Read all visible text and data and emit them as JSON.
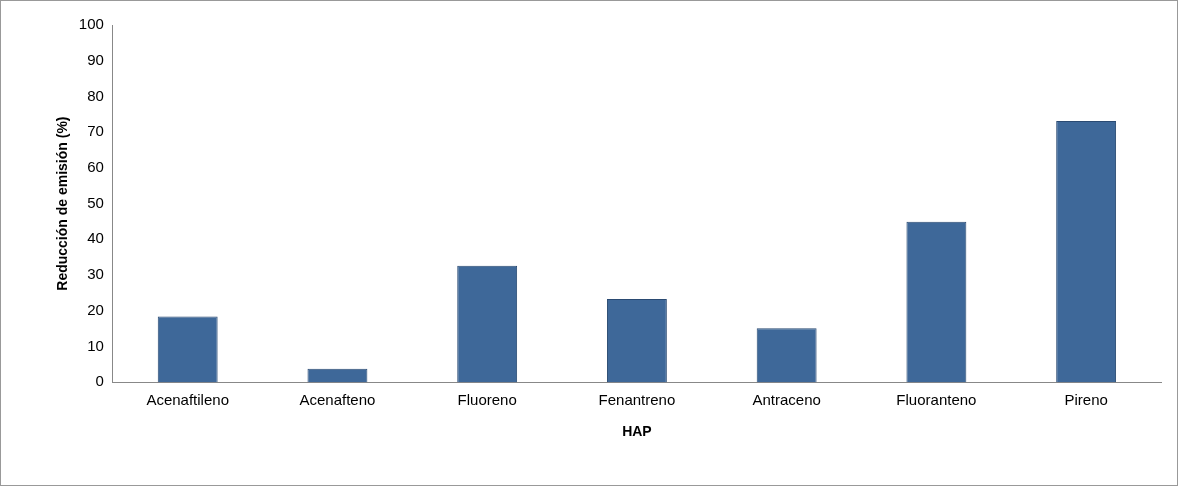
{
  "chart_data": {
    "type": "bar",
    "xlabel": "HAP",
    "ylabel": "Reducción de emisión (%)",
    "categories": [
      "Acenaftileno",
      "Acenafteno",
      "Fluoreno",
      "Fenantreno",
      "Antraceno",
      "Fluoranteno",
      "Pireno"
    ],
    "values": [
      18.4,
      3.8,
      32.6,
      23.3,
      15.1,
      44.9,
      73.1
    ],
    "color": "#3e6899",
    "ylim": [
      0,
      100
    ],
    "yticks": [
      0,
      10,
      20,
      30,
      40,
      50,
      60,
      70,
      80,
      90,
      100
    ],
    "grid": false,
    "legend": false
  }
}
